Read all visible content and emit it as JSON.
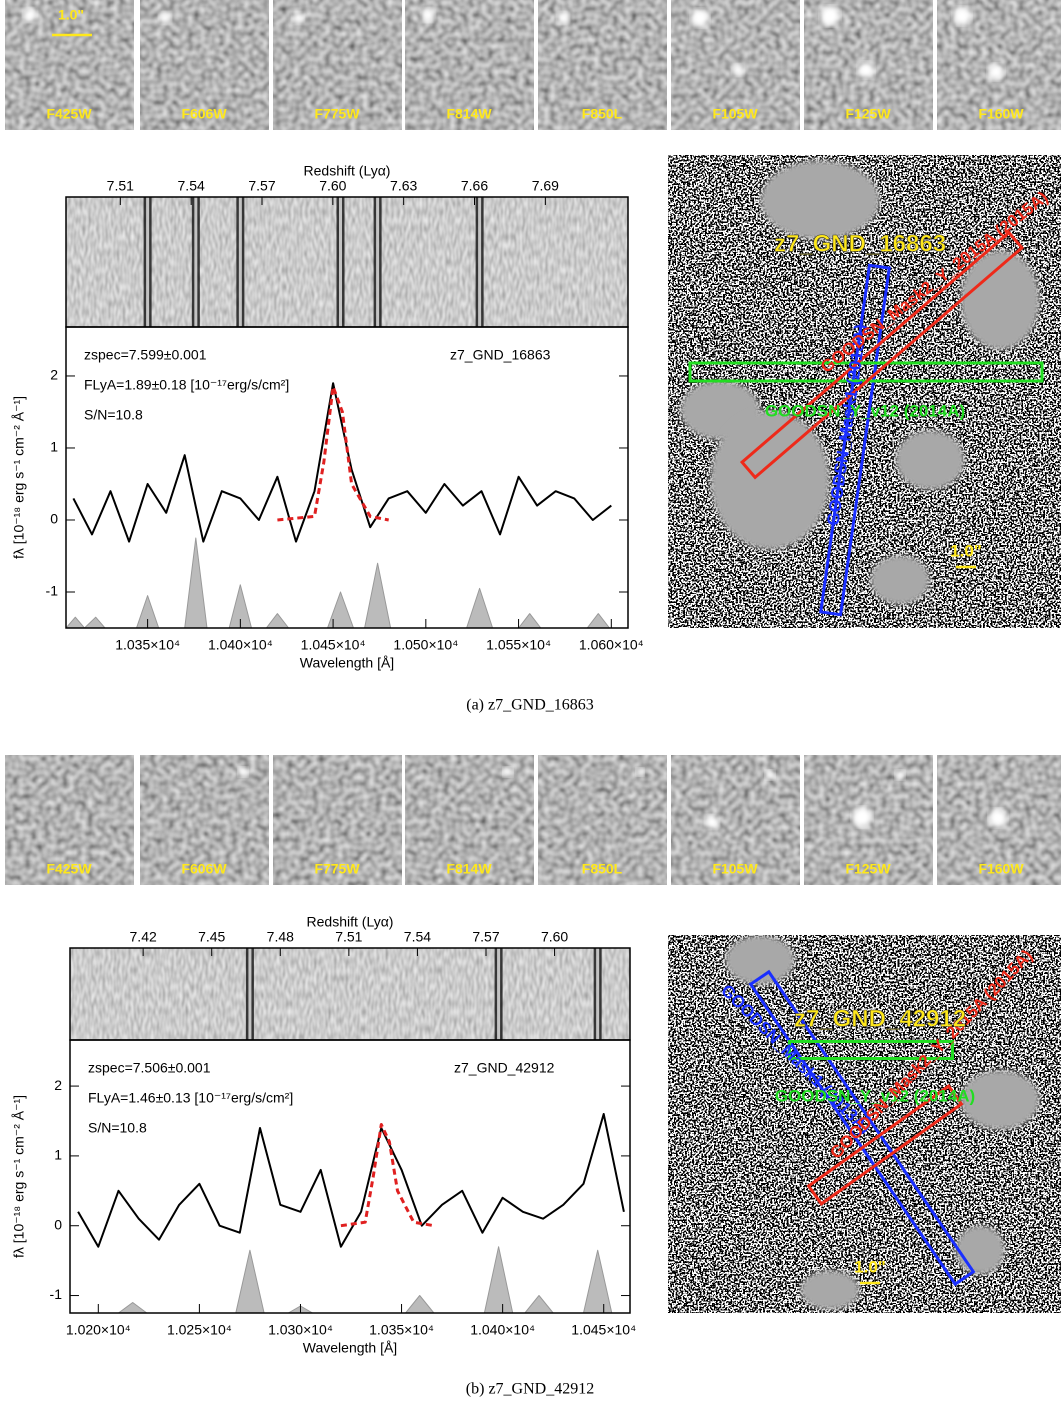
{
  "chart_data": [
    {
      "type": "line",
      "filters": [
        "F425W",
        "F606W",
        "F775W",
        "F814W",
        "F850L",
        "F105W",
        "F125W",
        "F160W"
      ],
      "stamp_scale": "1.0\"",
      "x2label": "Redshift (Lyα)",
      "x2lim": [
        7.487,
        7.725
      ],
      "x2ticks": [
        7.51,
        7.54,
        7.57,
        {
          "value": 7.6,
          "label": "7.60"
        },
        7.63,
        7.66,
        7.69
      ],
      "xlabel": "Wavelength [Å]",
      "ylabel": "fλ [10⁻¹⁸ erg s⁻¹ cm⁻² Å⁻¹]",
      "xlim": [
        10306,
        10609
      ],
      "xticks": [
        {
          "value": 10350,
          "label": "1.035×10⁴"
        },
        {
          "value": 10400,
          "label": "1.040×10⁴"
        },
        {
          "value": 10450,
          "label": "1.045×10⁴"
        },
        {
          "value": 10500,
          "label": "1.050×10⁴"
        },
        {
          "value": 10550,
          "label": "1.055×10⁴"
        },
        {
          "value": 10600,
          "label": "1.060×10⁴"
        }
      ],
      "ylim": [
        -1.5,
        2.68
      ],
      "yticks": [
        -1,
        0,
        1,
        2
      ],
      "annotations": [
        "zspec=7.599±0.001",
        "FLyA=1.89±0.18 [10⁻¹⁷erg/s/cm²]",
        "S/N=10.8",
        "z7_GND_16863"
      ],
      "series": [
        {
          "color": "#999999",
          "fill": true,
          "x": [
            10306,
            10311,
            10316,
            10322,
            10327,
            10344,
            10350,
            10356,
            10370,
            10376,
            10382,
            10394,
            10400,
            10406,
            10414,
            10420,
            10426,
            10447,
            10454,
            10461,
            10467,
            10474,
            10481,
            10522,
            10529,
            10536,
            10550,
            10556,
            10562,
            10587,
            10593,
            10599,
            10609
          ],
          "values": [
            -1.5,
            -1.35,
            -1.5,
            -1.35,
            -1.5,
            -1.5,
            -1.05,
            -1.5,
            -1.5,
            -0.25,
            -1.5,
            -1.5,
            -0.9,
            -1.5,
            -1.5,
            -1.3,
            -1.5,
            -1.5,
            -1.0,
            -1.5,
            -1.5,
            -0.6,
            -1.5,
            -1.5,
            -0.95,
            -1.5,
            -1.5,
            -1.3,
            -1.5,
            -1.5,
            -1.3,
            -1.5,
            -1.5
          ]
        },
        {
          "color": "#000000",
          "x": [
            10310,
            10320,
            10330,
            10340,
            10350,
            10360,
            10370,
            10380,
            10390,
            10400,
            10410,
            10420,
            10430,
            10440,
            10450,
            10460,
            10470,
            10480,
            10490,
            10500,
            10510,
            10520,
            10530,
            10540,
            10550,
            10560,
            10570,
            10580,
            10590,
            10600
          ],
          "values": [
            0.3,
            -0.2,
            0.4,
            -0.3,
            0.5,
            0.1,
            0.9,
            -0.3,
            0.4,
            0.3,
            0.0,
            0.6,
            -0.3,
            0.4,
            1.9,
            0.7,
            -0.1,
            0.3,
            0.4,
            0.1,
            0.5,
            0.2,
            0.4,
            -0.2,
            0.6,
            0.2,
            0.4,
            0.3,
            0.0,
            0.2
          ]
        },
        {
          "color": "#e02020",
          "style": "dashed",
          "x": [
            10420,
            10440,
            10445,
            10450,
            10455,
            10460,
            10470,
            10480
          ],
          "values": [
            0,
            0.05,
            0.8,
            1.85,
            1.5,
            0.5,
            0.05,
            0
          ]
        }
      ],
      "image": {
        "object": "z7_GND_16863",
        "scale": "1.0\"",
        "slits": [
          {
            "label": "GOODSN_Mask1 (2013A)",
            "color": "#1a2fff"
          },
          {
            "label": "GOODSN_Y_v12 (2014A)",
            "color": "#22dd22"
          },
          {
            "label": "GOODSN_Mask2_Y_2015A (2015A)",
            "color": "#ee2a1a"
          }
        ]
      },
      "caption": "(a) z7_GND_16863"
    },
    {
      "type": "line",
      "filters": [
        "F425W",
        "F606W",
        "F775W",
        "F814W",
        "F850L",
        "F105W",
        "F125W",
        "F160W"
      ],
      "x2label": "Redshift (Lyα)",
      "x2lim": [
        7.388,
        7.633
      ],
      "x2ticks": [
        7.42,
        7.45,
        7.48,
        7.51,
        7.54,
        7.57,
        {
          "value": 7.6,
          "label": "7.60"
        }
      ],
      "xlabel": "Wavelength [Å]",
      "ylabel": "fλ [10⁻¹⁸ erg s⁻¹ cm⁻² Å⁻¹]",
      "xlim": [
        10186,
        10463
      ],
      "xticks": [
        {
          "value": 10200,
          "label": "1.020×10⁴"
        },
        {
          "value": 10250,
          "label": "1.025×10⁴"
        },
        {
          "value": 10300,
          "label": "1.030×10⁴"
        },
        {
          "value": 10350,
          "label": "1.035×10⁴"
        },
        {
          "value": 10400,
          "label": "1.040×10⁴"
        },
        {
          "value": 10450,
          "label": "1.045×10⁴"
        }
      ],
      "ylim": [
        -1.25,
        2.66
      ],
      "yticks": [
        -1,
        0,
        1,
        2
      ],
      "annotations": [
        "zspec=7.506±0.001",
        "FLyA=1.46±0.13 [10⁻¹⁷erg/s/cm²]",
        "S/N=10.8",
        "z7_GND_42912"
      ],
      "series": [
        {
          "color": "#999999",
          "fill": true,
          "x": [
            10186,
            10210,
            10217,
            10224,
            10268,
            10275,
            10282,
            10294,
            10300,
            10306,
            10352,
            10359,
            10366,
            10391,
            10398,
            10405,
            10411,
            10418,
            10425,
            10440,
            10447,
            10454,
            10463
          ],
          "values": [
            -1.25,
            -1.25,
            -1.1,
            -1.25,
            -1.25,
            -0.35,
            -1.25,
            -1.25,
            -1.15,
            -1.25,
            -1.25,
            -1.0,
            -1.25,
            -1.25,
            -0.3,
            -1.25,
            -1.25,
            -1.0,
            -1.25,
            -1.25,
            -0.35,
            -1.25,
            -1.25
          ]
        },
        {
          "color": "#000000",
          "x": [
            10190,
            10200,
            10210,
            10220,
            10230,
            10240,
            10250,
            10260,
            10270,
            10280,
            10290,
            10300,
            10310,
            10320,
            10330,
            10340,
            10350,
            10360,
            10370,
            10380,
            10390,
            10400,
            10410,
            10420,
            10430,
            10440,
            10450,
            10460
          ],
          "values": [
            0.2,
            -0.3,
            0.5,
            0.1,
            -0.2,
            0.3,
            0.6,
            0.0,
            -0.1,
            1.4,
            0.3,
            0.2,
            0.8,
            -0.3,
            0.2,
            1.4,
            0.8,
            0.0,
            0.3,
            0.5,
            -0.1,
            0.4,
            0.2,
            0.1,
            0.3,
            0.6,
            1.6,
            0.2
          ]
        },
        {
          "color": "#e02020",
          "style": "dashed",
          "x": [
            10320,
            10332,
            10336,
            10340,
            10344,
            10348,
            10356,
            10366
          ],
          "values": [
            0,
            0.05,
            0.7,
            1.45,
            1.2,
            0.5,
            0.05,
            0
          ]
        }
      ],
      "image": {
        "object": "z7_GND_42912",
        "scale": "1.0\"",
        "slits": [
          {
            "label": "GOODSN_Mask1 (2013A)",
            "color": "#1a2fff"
          },
          {
            "label": "GOODSN_Y_v12 (2014A)",
            "color": "#22dd22"
          },
          {
            "label": "GOODSN_Mask2_Y_2015A (2015A)",
            "color": "#ee2a1a"
          }
        ]
      },
      "caption": "(b) z7_GND_42912"
    }
  ]
}
